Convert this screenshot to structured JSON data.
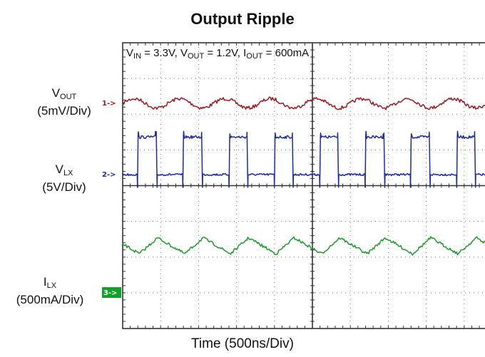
{
  "title": "Output Ripple",
  "conditions": {
    "vin_main": "V",
    "vin_sub": "IN",
    "vin_val": " = 3.3V, ",
    "vout_main": "V",
    "vout_sub": "OUT",
    "vout_val": " = 1.2V, ",
    "iout_main": "I",
    "iout_sub": "OUT",
    "iout_val": " = 600mA"
  },
  "traces": [
    {
      "main": "V",
      "sub": "OUT",
      "scale": "(5mV/Div)",
      "marker": "1->"
    },
    {
      "main": "V",
      "sub": "LX",
      "scale": "(5V/Div)",
      "marker": "2->"
    },
    {
      "main": "I",
      "sub": "LX",
      "scale": "(500mA/Div)",
      "marker": "3->"
    }
  ],
  "colors": {
    "ch1": "#a0181c",
    "ch2": "#1c2aa8",
    "ch3": "#1e9a2c",
    "ch3_marker_bg": "#12a02a",
    "grid": "#333333"
  },
  "chart_data": {
    "type": "line",
    "title": "Output Ripple",
    "xlabel": "Time (500ns/Div)",
    "grid": true,
    "x_divisions": 10,
    "y_divisions": 8,
    "x_unit": "ns",
    "xlim": [
      0,
      5000
    ],
    "switching_period_ns": 600,
    "series": [
      {
        "name": "VOUT",
        "scale": "5mV/Div",
        "waveform": "ripple",
        "x_ns": [
          0,
          300,
          600,
          900,
          1200,
          1500,
          1800,
          2100,
          2400,
          2700,
          3000,
          3300,
          3600,
          3900,
          4200,
          4500,
          4800
        ],
        "y_div_offset": [
          0.15,
          -0.15,
          0.15,
          -0.15,
          0.15,
          -0.15,
          0.15,
          -0.15,
          0.15,
          -0.15,
          0.15,
          -0.15,
          0.15,
          -0.15,
          0.15,
          -0.15,
          0.15
        ]
      },
      {
        "name": "VLX",
        "scale": "5V/Div",
        "waveform": "square",
        "high_level_div": 1.05,
        "duty_cycle": 0.4,
        "rising_edges_ns": [
          200,
          800,
          1400,
          2000,
          2600,
          3200,
          3800,
          4400
        ]
      },
      {
        "name": "ILX",
        "scale": "500mA/Div",
        "waveform": "triangle",
        "peaks_ns": [
          460,
          1060,
          1660,
          2260,
          2860,
          3460,
          4060,
          4660
        ],
        "valleys_ns": [
          220,
          820,
          1420,
          2020,
          2620,
          3220,
          3820,
          4420
        ],
        "peak_to_peak_div": 0.45
      }
    ]
  }
}
